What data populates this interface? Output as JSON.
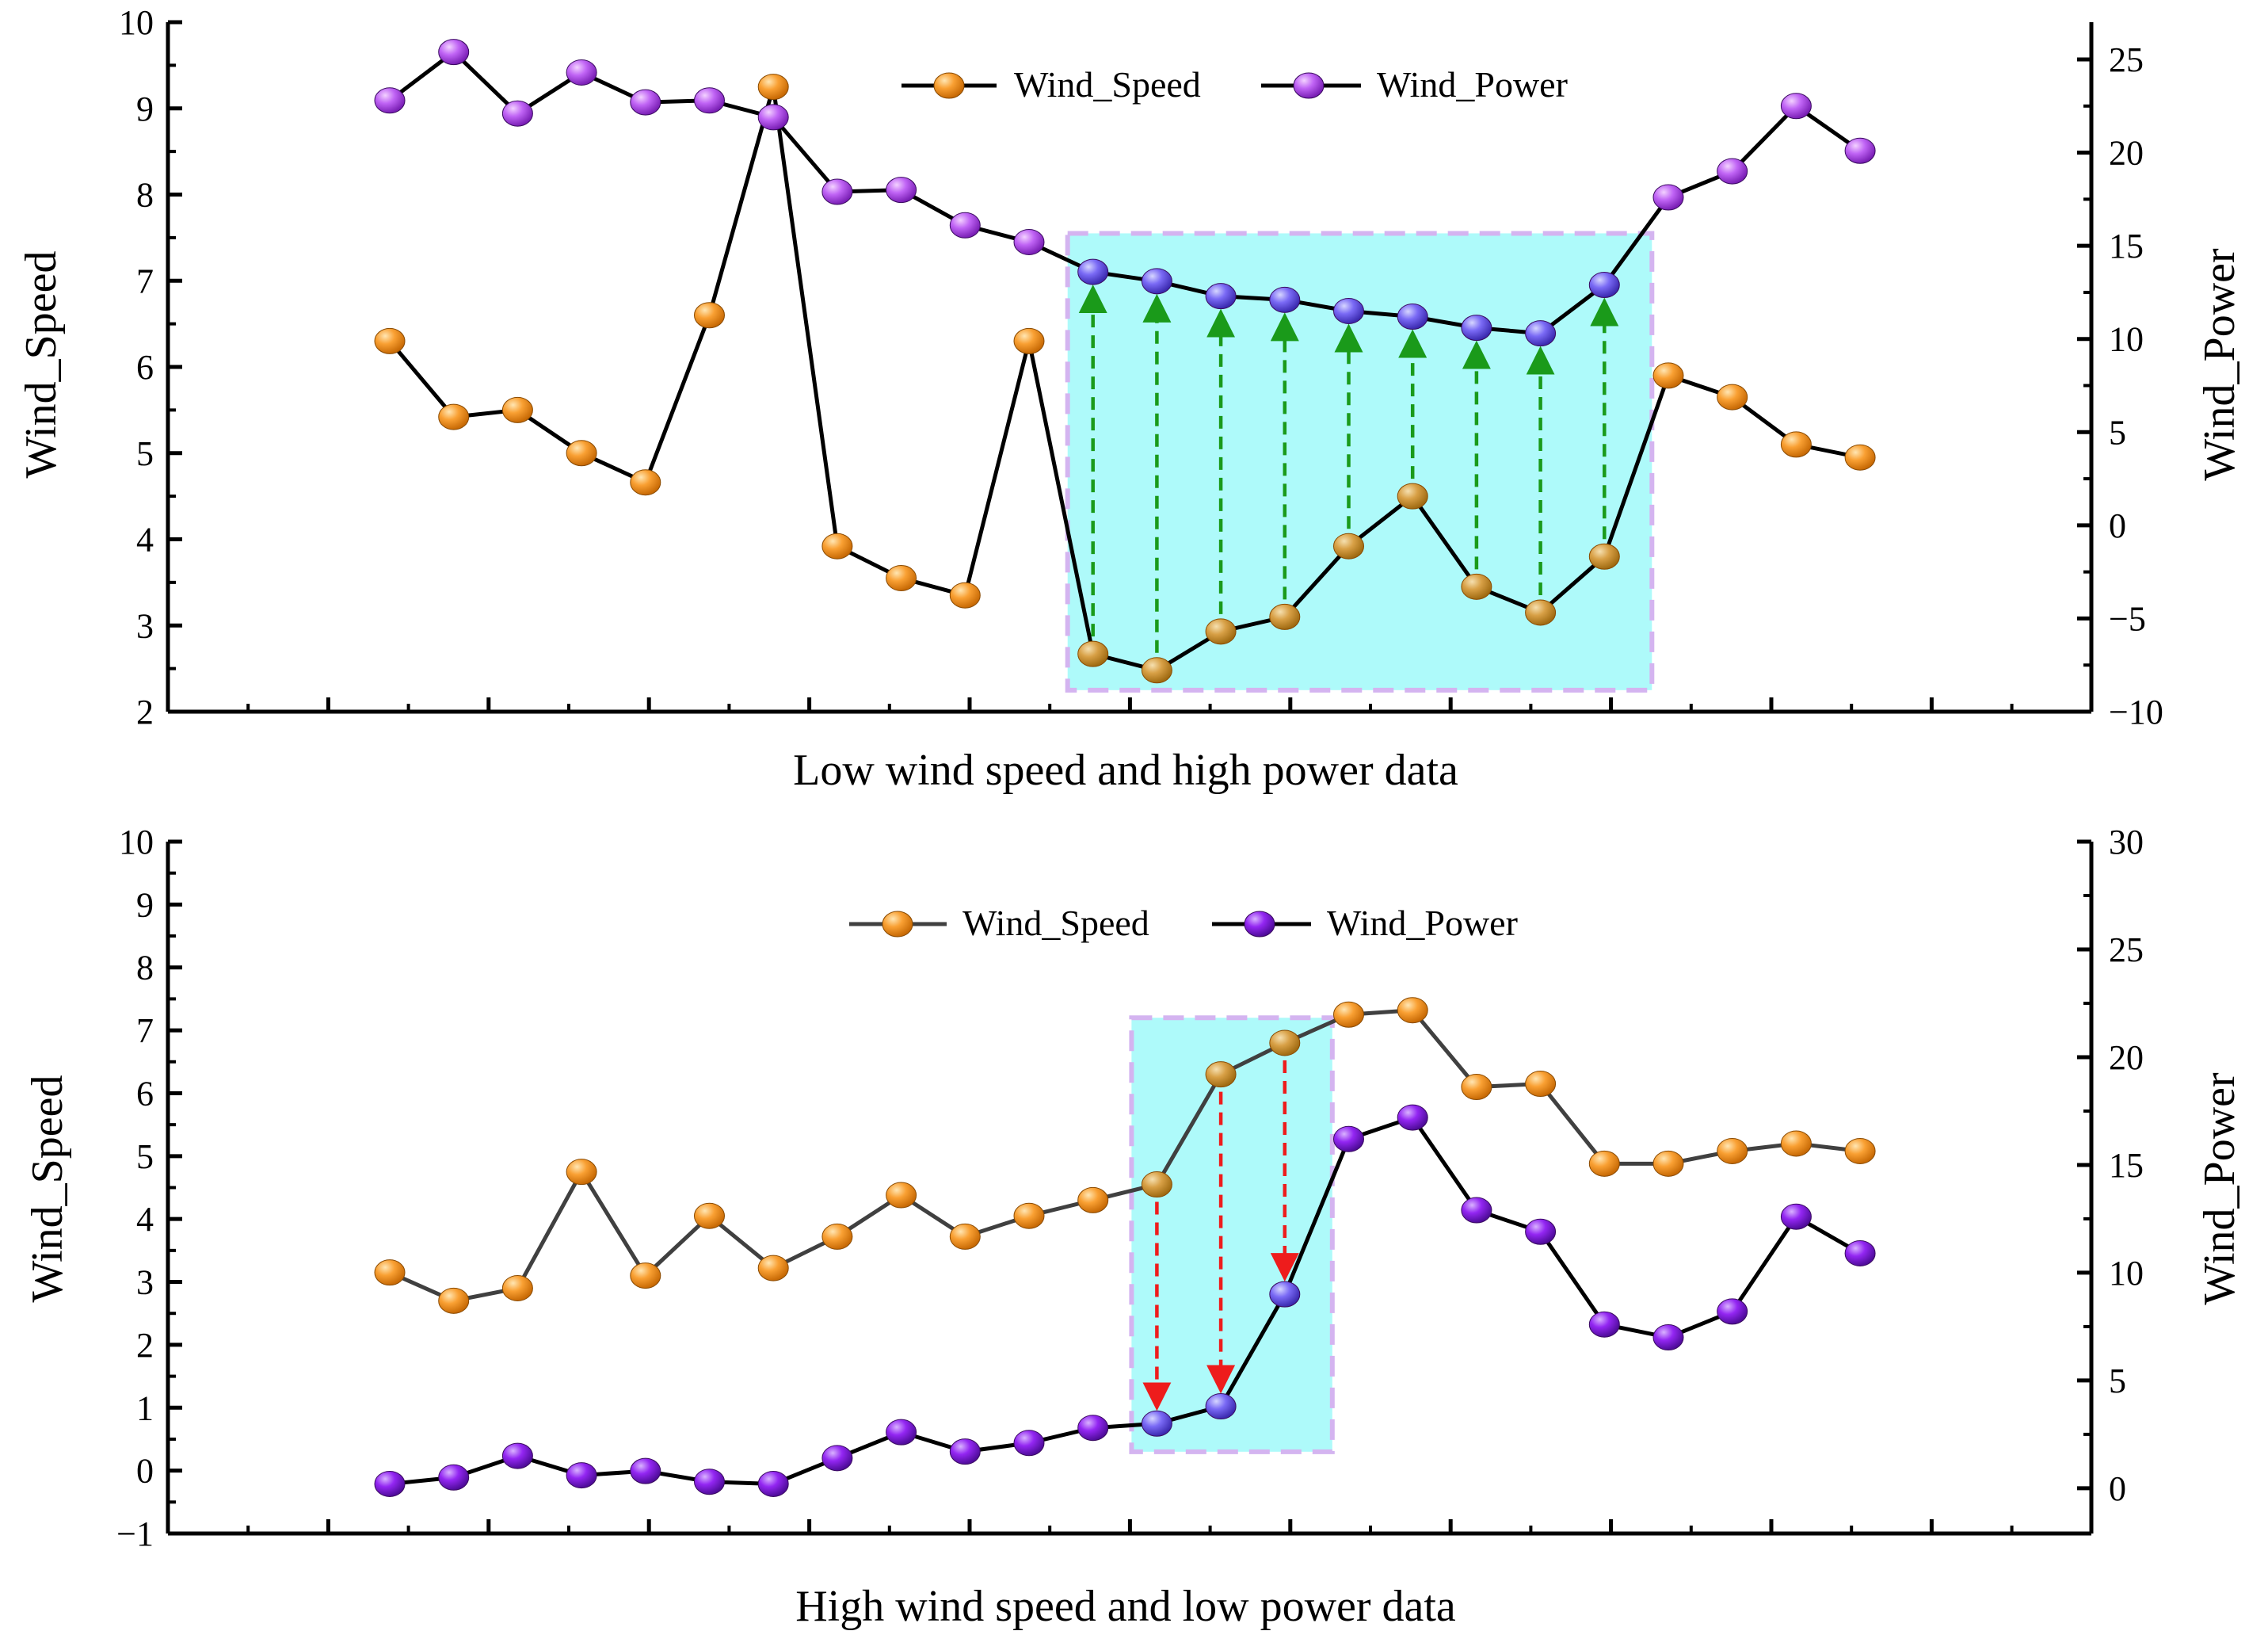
{
  "chart_data": [
    {
      "type": "line",
      "title": "Low wind speed and high power data",
      "x": [
        1,
        2,
        3,
        4,
        5,
        6,
        7,
        8,
        9,
        10,
        11,
        12,
        13,
        14,
        15,
        16,
        17,
        18,
        19,
        20,
        21,
        22,
        23,
        24
      ],
      "left_axis": {
        "label": "Wind_Speed",
        "range": [
          2,
          10
        ],
        "ticks": [
          "2",
          "3",
          "4",
          "5",
          "6",
          "7",
          "8",
          "9",
          "10"
        ]
      },
      "right_axis": {
        "label": "Wind_Power",
        "range": [
          -10,
          27
        ],
        "ticks": [
          "−10",
          "−5",
          "0",
          "5",
          "10",
          "15",
          "20",
          "25"
        ]
      },
      "legend": [
        "Wind_Speed",
        "Wind_Power"
      ],
      "legend_position": "top-center",
      "series": [
        {
          "name": "Wind_Speed",
          "axis": "left",
          "color": "#f7931e",
          "values": [
            6.3,
            5.42,
            5.5,
            5.0,
            4.66,
            6.6,
            9.25,
            3.92,
            3.55,
            3.35,
            6.3,
            2.67,
            2.48,
            2.93,
            3.1,
            3.92,
            4.5,
            3.45,
            3.15,
            3.8,
            5.9,
            5.65,
            5.1,
            4.95
          ]
        },
        {
          "name": "Wind_Power",
          "axis": "right",
          "color": "#b44cf0",
          "values": [
            22.8,
            25.4,
            22.1,
            24.3,
            22.7,
            22.8,
            21.9,
            17.9,
            18.0,
            16.1,
            15.2,
            13.6,
            13.1,
            12.3,
            12.1,
            11.5,
            11.2,
            10.6,
            10.3,
            12.9,
            17.6,
            19.0,
            22.5,
            20.1
          ]
        }
      ],
      "highlight": {
        "from_x": 12,
        "to_x": 20,
        "speed_range": [
          2.25,
          7.55
        ],
        "color": "#aefafa"
      },
      "arrows": {
        "direction": "up",
        "color": "#1a9a1a",
        "x": [
          12,
          13,
          14,
          15,
          16,
          17,
          18,
          19,
          20
        ]
      },
      "x_ticks_count": 11
    },
    {
      "type": "line",
      "title": "High wind speed and low power data",
      "x": [
        1,
        2,
        3,
        4,
        5,
        6,
        7,
        8,
        9,
        10,
        11,
        12,
        13,
        14,
        15,
        16,
        17,
        18,
        19,
        20,
        21,
        22,
        23,
        24
      ],
      "left_axis": {
        "label": "Wind_Speed",
        "range": [
          -1,
          10
        ],
        "ticks": [
          "−1",
          "0",
          "1",
          "2",
          "3",
          "4",
          "5",
          "6",
          "7",
          "8",
          "9",
          "10"
        ]
      },
      "right_axis": {
        "label": "Wind_Power",
        "range": [
          -2.1,
          30
        ],
        "ticks": [
          "0",
          "5",
          "10",
          "15",
          "20",
          "25",
          "30"
        ]
      },
      "legend": [
        "Wind_Speed",
        "Wind_Power"
      ],
      "legend_position": "top-center",
      "series": [
        {
          "name": "Wind_Speed",
          "axis": "left",
          "color": "#f7931e",
          "values": [
            3.15,
            2.7,
            2.9,
            4.75,
            3.1,
            4.05,
            3.22,
            3.72,
            4.38,
            3.72,
            4.05,
            4.3,
            4.55,
            6.3,
            6.8,
            7.25,
            7.32,
            6.1,
            6.15,
            4.88,
            4.88,
            5.08,
            5.2,
            5.08
          ]
        },
        {
          "name": "Wind_Power",
          "axis": "right",
          "color": "#8b1af0",
          "values": [
            0.2,
            0.5,
            1.5,
            0.6,
            0.8,
            0.3,
            0.2,
            1.4,
            2.6,
            1.7,
            2.1,
            2.8,
            3.0,
            3.8,
            9.0,
            16.2,
            17.2,
            12.9,
            11.9,
            7.6,
            7.0,
            8.2,
            12.6,
            10.9
          ]
        }
      ],
      "highlight": {
        "from_x": 13,
        "to_x": 15,
        "speed_range": [
          0.3,
          7.2
        ],
        "color": "#aefafa"
      },
      "arrows": {
        "direction": "down",
        "color": "#ee1c1c",
        "x": [
          13,
          14,
          15
        ]
      },
      "x_ticks_count": 11
    }
  ]
}
